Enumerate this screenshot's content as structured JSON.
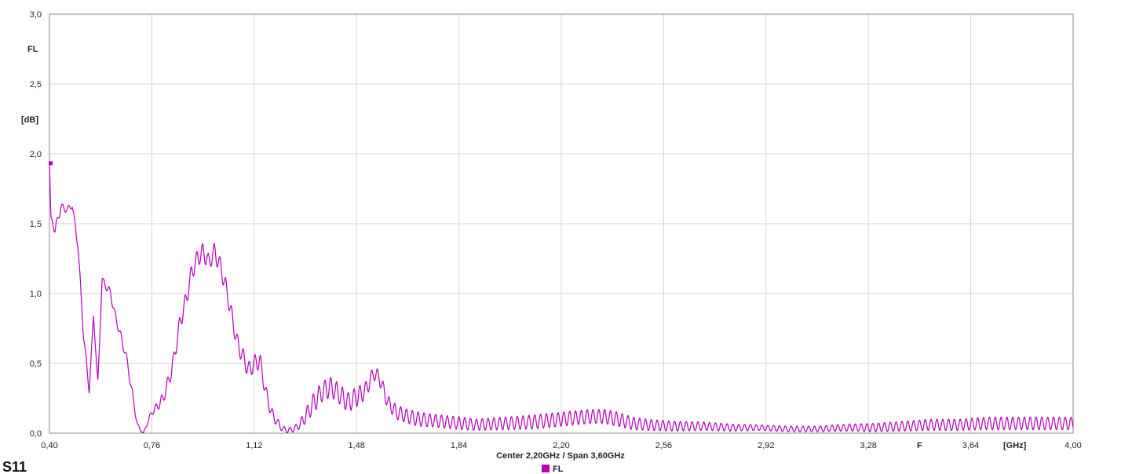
{
  "title": "S11",
  "bottom_text": "Center 2,20GHz / Span 3,60GHz",
  "y_unit_label": "[dB]",
  "y_param_label": "FL",
  "x_unit_label": "[GHz]",
  "x_marker_label": "F",
  "legend_label": "FL",
  "colors": {
    "trace": "#b000b5",
    "grid": "#d4d4d4",
    "frame": "#888888"
  },
  "chart_data": {
    "type": "line",
    "title": "S11",
    "xlabel": "[GHz]",
    "ylabel": "[dB]",
    "xlim": [
      0.4,
      4.0
    ],
    "ylim": [
      0.0,
      3.0
    ],
    "grid": true,
    "legend": "bottom-center",
    "x_ticks": [
      "0,40",
      "0,76",
      "1,12",
      "1,48",
      "1,84",
      "2,20",
      "2,56",
      "2,92",
      "3,28",
      "3,64",
      "4,00"
    ],
    "y_ticks": [
      "0,0",
      "0,5",
      "1,0",
      "1,5",
      "2,0",
      "2,5",
      "3,0"
    ],
    "series": [
      {
        "name": "FL",
        "x": [
          0.4,
          0.405,
          0.42,
          0.44,
          0.46,
          0.48,
          0.5,
          0.52,
          0.54,
          0.555,
          0.57,
          0.585,
          0.6,
          0.615,
          0.63,
          0.65,
          0.67,
          0.69,
          0.71,
          0.73,
          0.75,
          0.76,
          0.775,
          0.8,
          0.83,
          0.86,
          0.88,
          0.9,
          0.92,
          0.94,
          0.96,
          0.98,
          1.0,
          1.02,
          1.04,
          1.06,
          1.08,
          1.1,
          1.12,
          1.14,
          1.16,
          1.18,
          1.2,
          1.22,
          1.24,
          1.26,
          1.28,
          1.3,
          1.33,
          1.36,
          1.39,
          1.42,
          1.45,
          1.48,
          1.51,
          1.54,
          1.56,
          1.59,
          1.62,
          1.66,
          1.7,
          1.75,
          1.8,
          1.85,
          1.9,
          2.0,
          2.1,
          2.2,
          2.3,
          2.35,
          2.4,
          2.45,
          2.5,
          2.6,
          2.7,
          2.8,
          2.9,
          3.0,
          3.1,
          3.2,
          3.3,
          3.4,
          3.5,
          3.6,
          3.7,
          3.8,
          3.9,
          4.0
        ],
        "values": [
          1.93,
          1.55,
          1.45,
          1.62,
          1.6,
          1.63,
          1.35,
          0.7,
          0.3,
          0.85,
          0.35,
          1.1,
          1.05,
          1.0,
          0.85,
          0.7,
          0.55,
          0.3,
          0.05,
          0.0,
          0.1,
          0.15,
          0.18,
          0.25,
          0.45,
          0.8,
          0.95,
          1.15,
          1.25,
          1.3,
          1.22,
          1.3,
          1.2,
          1.05,
          0.85,
          0.65,
          0.55,
          0.45,
          0.5,
          0.52,
          0.3,
          0.15,
          0.08,
          0.03,
          0.02,
          0.03,
          0.06,
          0.12,
          0.22,
          0.3,
          0.33,
          0.28,
          0.22,
          0.26,
          0.3,
          0.43,
          0.4,
          0.22,
          0.15,
          0.12,
          0.1,
          0.09,
          0.08,
          0.07,
          0.06,
          0.07,
          0.08,
          0.1,
          0.12,
          0.12,
          0.1,
          0.07,
          0.06,
          0.05,
          0.05,
          0.04,
          0.04,
          0.03,
          0.03,
          0.04,
          0.04,
          0.05,
          0.06,
          0.06,
          0.07,
          0.07,
          0.07,
          0.07
        ],
        "ripple_amplitude": [
          0.0,
          0.0,
          0.04,
          0.03,
          0.02,
          0.02,
          0.03,
          0.03,
          0.02,
          0.02,
          0.02,
          0.02,
          0.03,
          0.03,
          0.03,
          0.03,
          0.03,
          0.03,
          0.02,
          0.0,
          0.02,
          0.02,
          0.03,
          0.04,
          0.05,
          0.06,
          0.06,
          0.06,
          0.06,
          0.06,
          0.06,
          0.06,
          0.06,
          0.06,
          0.06,
          0.06,
          0.06,
          0.06,
          0.06,
          0.06,
          0.05,
          0.04,
          0.03,
          0.02,
          0.02,
          0.02,
          0.03,
          0.05,
          0.07,
          0.07,
          0.07,
          0.07,
          0.07,
          0.07,
          0.06,
          0.05,
          0.05,
          0.05,
          0.05,
          0.05,
          0.05,
          0.045,
          0.045,
          0.045,
          0.04,
          0.045,
          0.05,
          0.05,
          0.05,
          0.05,
          0.05,
          0.045,
          0.04,
          0.035,
          0.03,
          0.025,
          0.02,
          0.02,
          0.02,
          0.025,
          0.03,
          0.035,
          0.04,
          0.04,
          0.045,
          0.045,
          0.045,
          0.045
        ]
      }
    ]
  }
}
